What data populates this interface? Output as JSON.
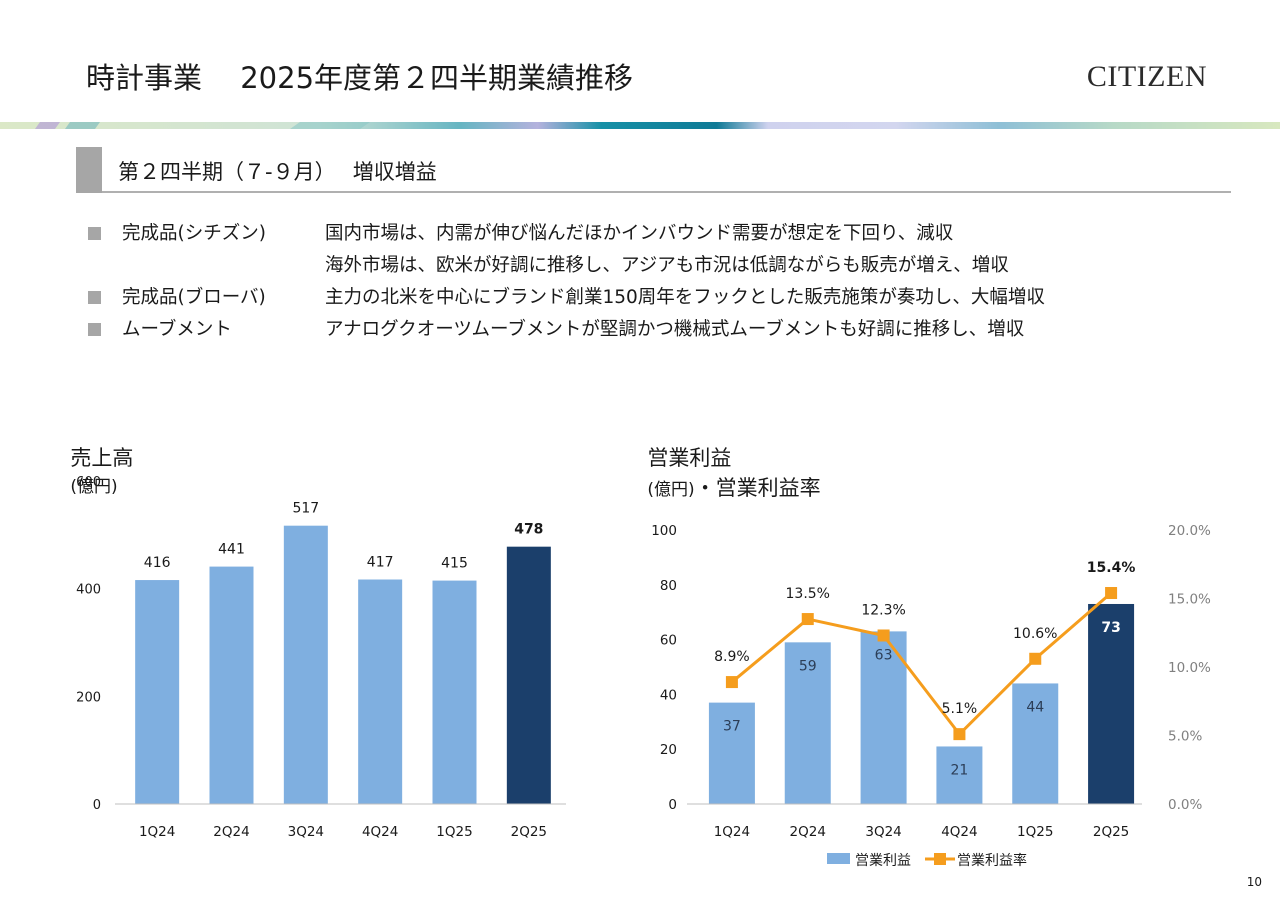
{
  "header": {
    "title": "時計事業　 2025年度第２四半期業績推移",
    "brand": "CITIZEN"
  },
  "section": {
    "title": "第２四半期（７-９月）　 増収増益"
  },
  "bullets": [
    {
      "label": "完成品(シチズン)",
      "lines": [
        "国内市場は、内需が伸び悩んだほかインバウンド需要が想定を下回り、減収",
        "海外市場は、欧米が好調に推移し、アジアも市況は低調ながらも販売が増え、増収"
      ]
    },
    {
      "label": "完成品(ブローバ)",
      "lines": [
        "主力の北米を中心にブランド創業150周年をフックとした販売施策が奏功し、大幅増収"
      ]
    },
    {
      "label": "ムーブメント",
      "lines": [
        "アナログクオーツムーブメントが堅調かつ機械式ムーブメントも好調に推移し、増収"
      ]
    }
  ],
  "colors": {
    "bar_light": "#7fafe0",
    "bar_dark": "#1b3f6b",
    "line": "#f59d1d",
    "axis": "#bfbfbf",
    "section_marker": "#a6a6a6"
  },
  "chart_data": [
    {
      "type": "bar",
      "title": "売上高",
      "title_unit": "(億円)",
      "categories": [
        "1Q24",
        "2Q24",
        "3Q24",
        "4Q24",
        "1Q25",
        "2Q25"
      ],
      "values": [
        416,
        441,
        517,
        417,
        415,
        478
      ],
      "value_labels": [
        "416",
        "441",
        "517",
        "417",
        "415",
        "478"
      ],
      "highlight_index": 5,
      "yticks": [
        "0",
        "200",
        "400",
        "600"
      ],
      "ylim": [
        0,
        600
      ],
      "xlabel": "",
      "ylabel": "",
      "grid": false,
      "legend": "none"
    },
    {
      "type": "bar+line",
      "title": "営業利益",
      "title_unit": "(億円)",
      "title_suffix": "・営業利益率",
      "categories": [
        "1Q24",
        "2Q24",
        "3Q24",
        "4Q24",
        "1Q25",
        "2Q25"
      ],
      "series": [
        {
          "name": "営業利益",
          "type": "bar",
          "axis": "left",
          "values": [
            37,
            59,
            63,
            21,
            44,
            73
          ],
          "value_labels": [
            "37",
            "59",
            "63",
            "21",
            "44",
            "73"
          ]
        },
        {
          "name": "営業利益率",
          "type": "line",
          "axis": "right",
          "values": [
            8.9,
            13.5,
            12.3,
            5.1,
            10.6,
            15.4
          ],
          "value_labels": [
            "8.9%",
            "13.5%",
            "12.3%",
            "5.1%",
            "10.6%",
            "15.4%"
          ]
        }
      ],
      "highlight_index": 5,
      "yticks_left": [
        "0",
        "20",
        "40",
        "60",
        "80",
        "100"
      ],
      "ylim_left": [
        0,
        100
      ],
      "yticks_right": [
        "0.0%",
        "5.0%",
        "10.0%",
        "15.0%",
        "20.0%"
      ],
      "ylim_right": [
        0,
        20
      ],
      "grid": false,
      "legend": "bottom"
    }
  ],
  "footer": {
    "page_number": "10"
  }
}
